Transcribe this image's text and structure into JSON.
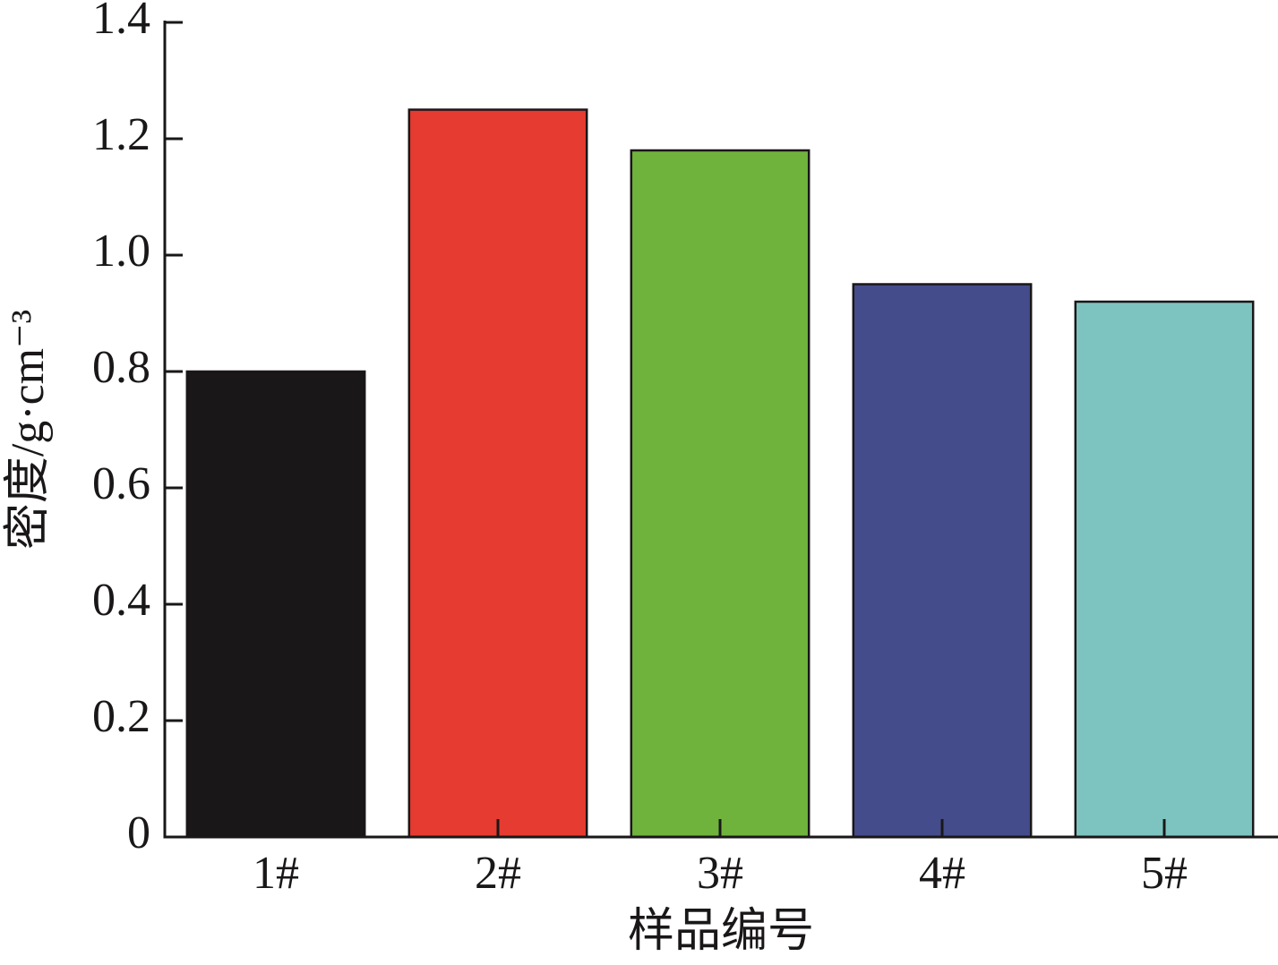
{
  "chart_data": {
    "type": "bar",
    "x_label": "样品编号",
    "y_label": "密度/g·cm⁻³",
    "categories": [
      "1#",
      "2#",
      "3#",
      "4#",
      "5#"
    ],
    "values": [
      0.8,
      1.25,
      1.18,
      0.95,
      0.92
    ],
    "colors": [
      "#1a1718",
      "#e53b30",
      "#70b33c",
      "#444c8c",
      "#7dc4c1"
    ],
    "ylim": [
      0,
      1.4
    ],
    "yticks": [
      0,
      0.2,
      0.4,
      0.6,
      {
        "value": 1,
        "label": "1.0"
      },
      0.8,
      1.2,
      1.4
    ],
    "grid": false
  }
}
